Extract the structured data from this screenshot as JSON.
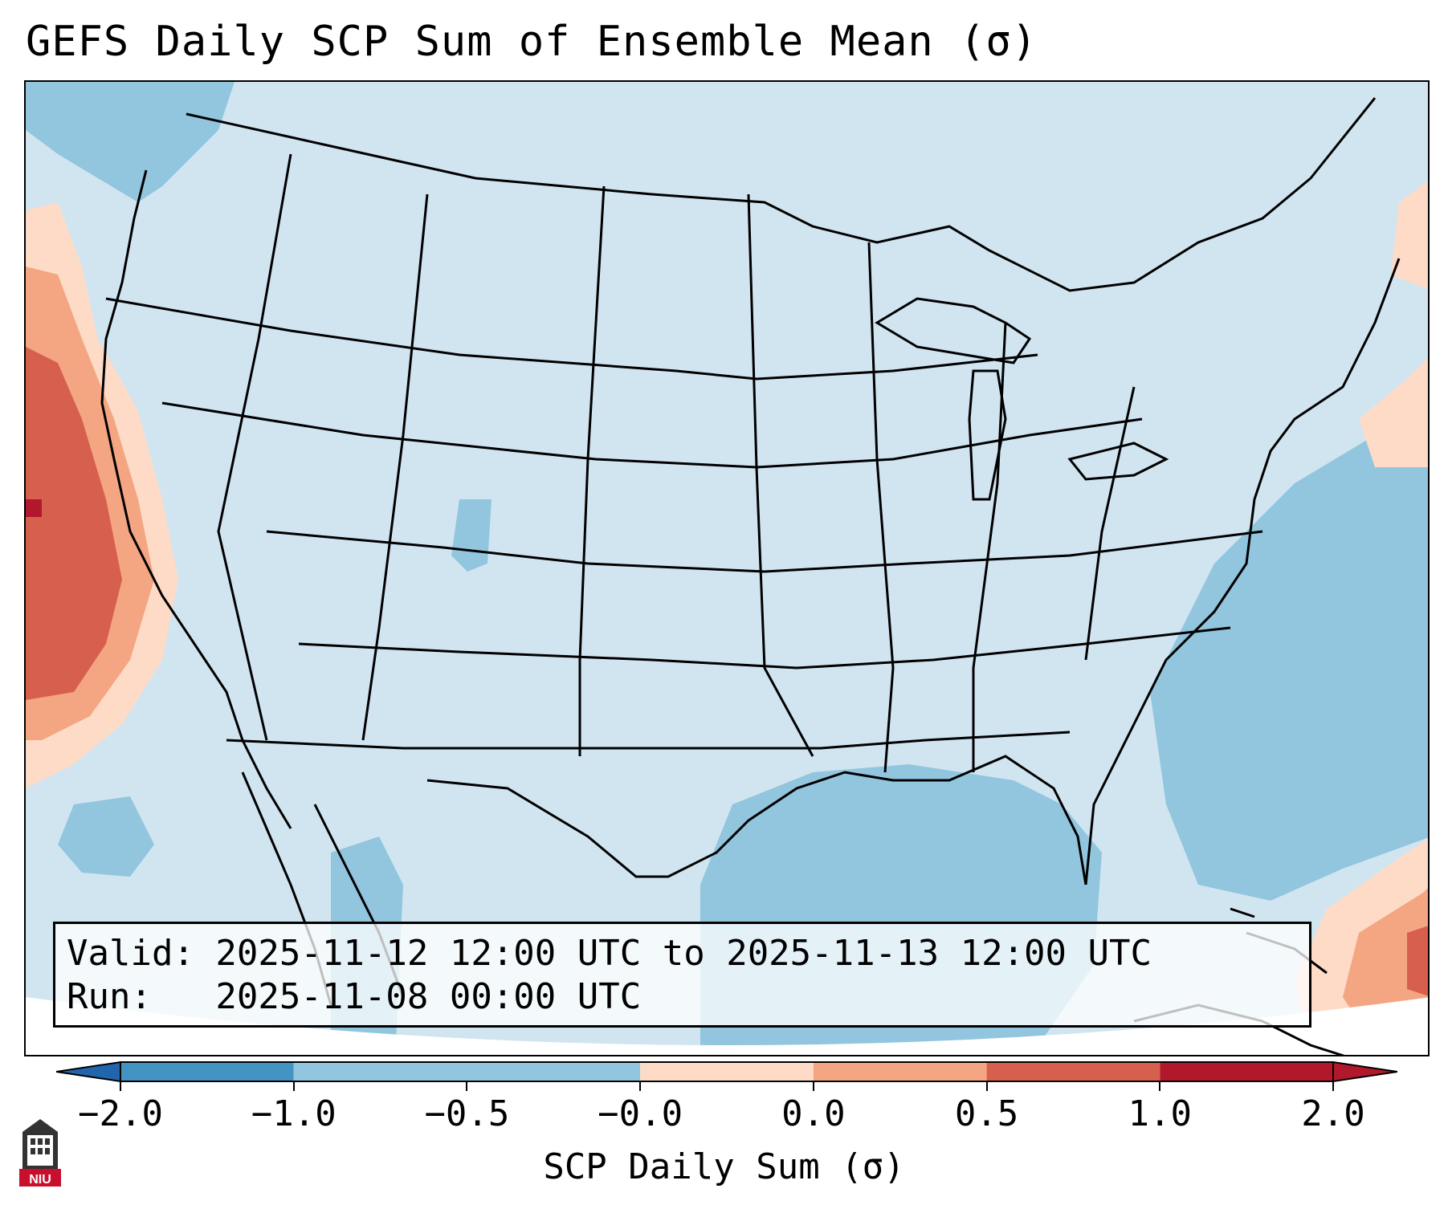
{
  "title": "GEFS Daily SCP Sum of Ensemble Mean (σ)",
  "map": {
    "description_region": "Contiguous United States",
    "colors": {
      "strong_negative": "#4393c3",
      "negative": "#92c5de",
      "near_zero_negative": "#d1e5f0",
      "near_zero_positive": "#fddbc7",
      "positive": "#f4a582",
      "strong_positive": "#d6604d",
      "extreme_positive": "#b2182b",
      "outline": "#000000"
    }
  },
  "info": {
    "valid_line": "Valid: 2025-11-12 12:00 UTC to 2025-11-13 12:00 UTC",
    "run_line": "Run:   2025-11-08 00:00 UTC"
  },
  "colorbar": {
    "ticks": [
      "−2.0",
      "−1.0",
      "−0.5",
      "−0.0",
      "0.0",
      "0.5",
      "1.0",
      "2.0"
    ],
    "segment_colors": [
      "#4393c3",
      "#92c5de",
      "#92c5de",
      "#d1e5f0",
      "#fddbc7",
      "#f4a582",
      "#d6604d",
      "#b2182b"
    ],
    "label": "SCP Daily Sum (σ)"
  },
  "logo": {
    "text": "NIU",
    "icon": "niu-tower-logo-icon"
  }
}
